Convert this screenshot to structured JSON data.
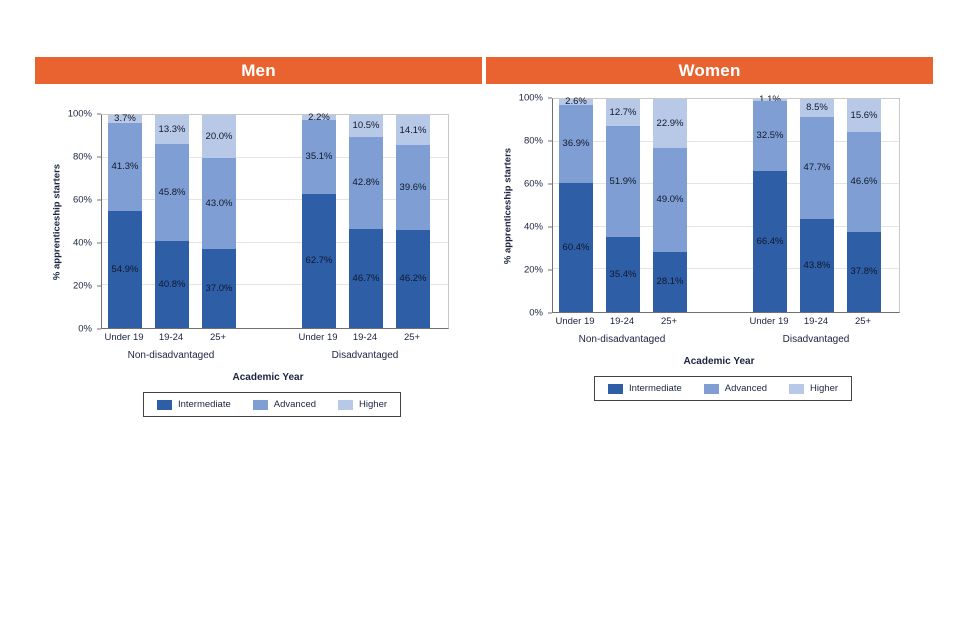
{
  "colors": {
    "header": "#e96330",
    "series": [
      "#2e5ea6",
      "#7f9fd4",
      "#b7c9e6"
    ],
    "value_label_text": "#10182b"
  },
  "chart_data": [
    {
      "type": "bar",
      "stacked": true,
      "title": "Men",
      "ylabel": "% apprenticeship starters",
      "xlabel": "Academic Year",
      "ylim": [
        0,
        100
      ],
      "yticks": [
        0,
        20,
        40,
        60,
        80,
        100
      ],
      "grid": true,
      "legend_position": "bottom",
      "categories": [
        "Under 19",
        "19-24",
        "25+",
        "Under 19",
        "19-24",
        "25+"
      ],
      "groups": [
        {
          "label": "Non-disadvantaged",
          "indices": [
            0,
            1,
            2
          ]
        },
        {
          "label": "Disadvantaged",
          "indices": [
            3,
            4,
            5
          ]
        }
      ],
      "series": [
        {
          "name": "Intermediate",
          "values": [
            54.9,
            40.8,
            37.0,
            62.7,
            46.7,
            46.2
          ]
        },
        {
          "name": "Advanced",
          "values": [
            41.3,
            45.8,
            43.0,
            35.1,
            42.8,
            39.6
          ]
        },
        {
          "name": "Higher",
          "values": [
            3.7,
            13.3,
            20.0,
            2.2,
            10.5,
            14.1
          ]
        }
      ]
    },
    {
      "type": "bar",
      "stacked": true,
      "title": "Women",
      "ylabel": "% apprenticeship starters",
      "xlabel": "Academic Year",
      "ylim": [
        0,
        100
      ],
      "yticks": [
        0,
        20,
        40,
        60,
        80,
        100
      ],
      "grid": true,
      "legend_position": "bottom",
      "categories": [
        "Under 19",
        "19-24",
        "25+",
        "Under 19",
        "19-24",
        "25+"
      ],
      "groups": [
        {
          "label": "Non-disadvantaged",
          "indices": [
            0,
            1,
            2
          ]
        },
        {
          "label": "Disadvantaged",
          "indices": [
            3,
            4,
            5
          ]
        }
      ],
      "series": [
        {
          "name": "Intermediate",
          "values": [
            60.4,
            35.4,
            28.1,
            66.4,
            43.8,
            37.8
          ]
        },
        {
          "name": "Advanced",
          "values": [
            36.9,
            51.9,
            49.0,
            32.5,
            47.7,
            46.6
          ]
        },
        {
          "name": "Higher",
          "values": [
            2.6,
            12.7,
            22.9,
            1.1,
            8.5,
            15.6
          ]
        }
      ]
    }
  ]
}
